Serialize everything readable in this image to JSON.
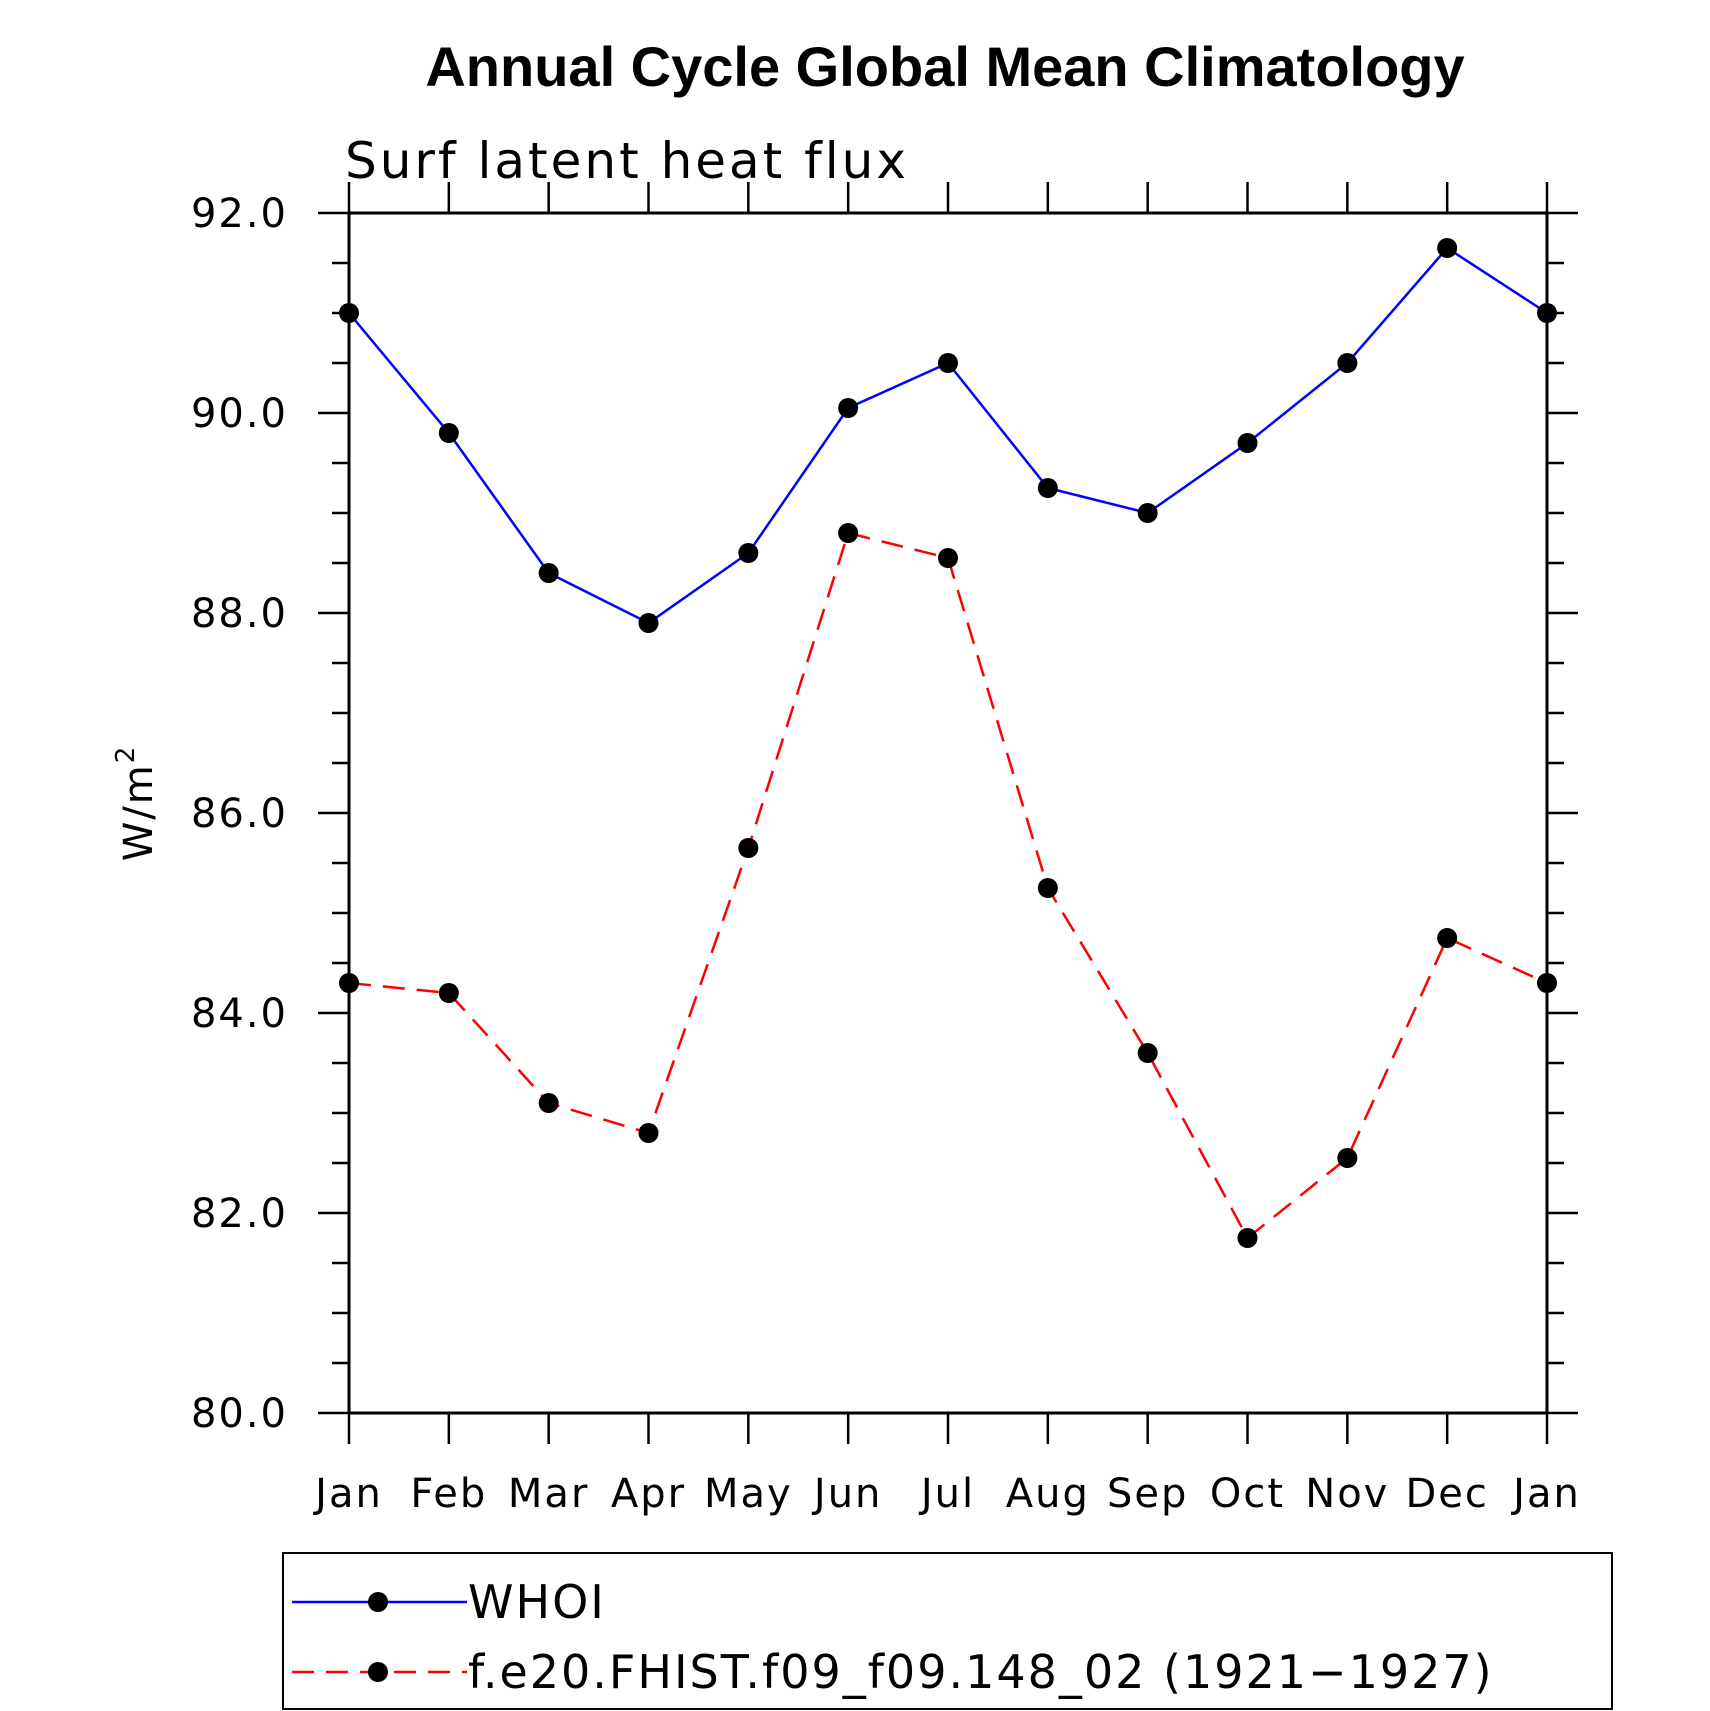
{
  "chart_data": {
    "type": "line",
    "title": "Annual Cycle Global Mean Climatology",
    "subtitle": "Surf latent heat flux",
    "ylabel": "W/m",
    "ylabel_sup": "2",
    "xlabel": "",
    "categories": [
      "Jan",
      "Feb",
      "Mar",
      "Apr",
      "May",
      "Jun",
      "Jul",
      "Aug",
      "Sep",
      "Oct",
      "Nov",
      "Dec",
      "Jan"
    ],
    "ylim": [
      80.0,
      92.0
    ],
    "yticks": [
      "80.0",
      "82.0",
      "84.0",
      "86.0",
      "88.0",
      "90.0",
      "92.0"
    ],
    "yminor_step": 0.5,
    "grid": false,
    "legend_position": "bottom",
    "series": [
      {
        "name": "WHOI",
        "color": "#0000ff",
        "dash": "solid",
        "marker": "filled-circle",
        "values": [
          91.0,
          89.8,
          88.4,
          87.9,
          88.6,
          90.05,
          90.5,
          89.25,
          89.0,
          89.7,
          90.5,
          91.65,
          91.0
        ]
      },
      {
        "name": "f.e20.FHIST.f09_f09.148_02 (1921−1927)",
        "color": "#ff0000",
        "dash": "dashed",
        "marker": "filled-circle",
        "values": [
          84.3,
          84.2,
          83.1,
          82.8,
          85.65,
          88.8,
          88.55,
          85.25,
          83.6,
          81.75,
          82.55,
          84.75,
          84.3
        ]
      }
    ]
  }
}
